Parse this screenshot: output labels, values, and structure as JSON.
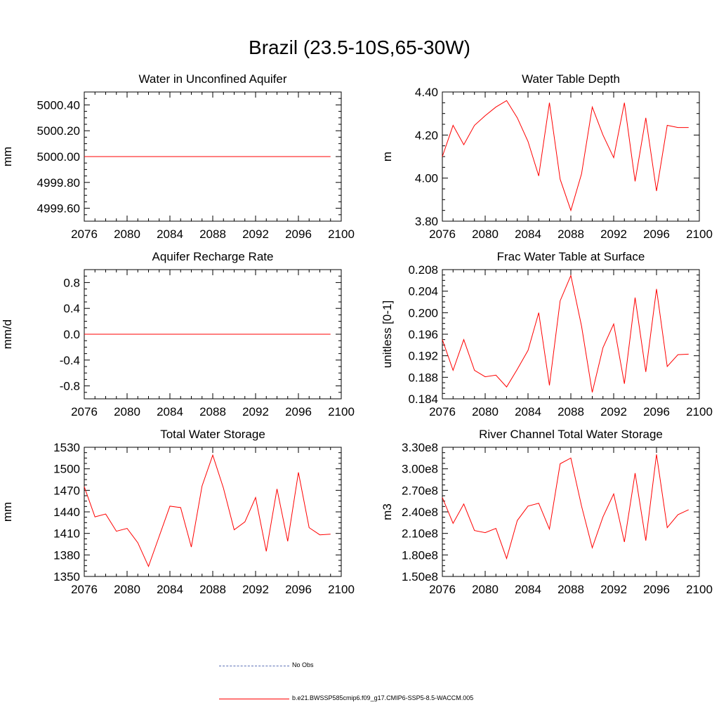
{
  "figure_title": "Brazil (23.5-10S,65-30W)",
  "colors": {
    "model": "#ff0000",
    "obs": "#5a6fb5",
    "axis": "#000000"
  },
  "legend": {
    "obs_label": "No Obs",
    "model_label": "b.e21.BWSSP585cmip6.f09_g17.CMIP6-SSP5-8.5-WACCM.005"
  },
  "chart_data": [
    {
      "type": "line",
      "title": "Water in Unconfined Aquifer",
      "ylabel": "mm",
      "xlabel": "",
      "xlim": [
        2076,
        2100
      ],
      "ylim": [
        4999.5,
        5000.5
      ],
      "xticks": [
        2076,
        2080,
        2084,
        2088,
        2092,
        2096,
        2100
      ],
      "xtick_labels": [
        "2076",
        "2080",
        "2084",
        "2088",
        "2092",
        "2096",
        "2100"
      ],
      "yticks": [
        4999.6,
        4999.8,
        5000.0,
        5000.2,
        5000.4
      ],
      "ytick_labels": [
        "4999.60",
        "4999.80",
        "5000.00",
        "5000.20",
        "5000.40"
      ],
      "x": [
        2076,
        2077,
        2078,
        2079,
        2080,
        2081,
        2082,
        2083,
        2084,
        2085,
        2086,
        2087,
        2088,
        2089,
        2090,
        2091,
        2092,
        2093,
        2094,
        2095,
        2096,
        2097,
        2098,
        2099
      ],
      "series": [
        {
          "values": [
            5000,
            5000,
            5000,
            5000,
            5000,
            5000,
            5000,
            5000,
            5000,
            5000,
            5000,
            5000,
            5000,
            5000,
            5000,
            5000,
            5000,
            5000,
            5000,
            5000,
            5000,
            5000,
            5000,
            5000
          ]
        }
      ]
    },
    {
      "type": "line",
      "title": "Water Table Depth",
      "ylabel": "m",
      "xlabel": "",
      "xlim": [
        2076,
        2100
      ],
      "ylim": [
        3.8,
        4.4
      ],
      "xticks": [
        2076,
        2080,
        2084,
        2088,
        2092,
        2096,
        2100
      ],
      "xtick_labels": [
        "2076",
        "2080",
        "2084",
        "2088",
        "2092",
        "2096",
        "2100"
      ],
      "yticks": [
        3.8,
        4.0,
        4.2,
        4.4
      ],
      "ytick_labels": [
        "3.80",
        "4.00",
        "4.20",
        "4.40"
      ],
      "x": [
        2076,
        2077,
        2078,
        2079,
        2080,
        2081,
        2082,
        2083,
        2084,
        2085,
        2086,
        2087,
        2088,
        2089,
        2090,
        2091,
        2092,
        2093,
        2094,
        2095,
        2096,
        2097,
        2098,
        2099
      ],
      "series": [
        {
          "values": [
            4.1,
            4.245,
            4.155,
            4.245,
            4.29,
            4.33,
            4.36,
            4.28,
            4.17,
            4.01,
            4.35,
            3.995,
            3.85,
            4.02,
            4.33,
            4.2,
            4.095,
            4.35,
            3.985,
            4.28,
            3.94,
            4.245,
            4.235,
            4.235
          ]
        }
      ]
    },
    {
      "type": "line",
      "title": "Aquifer Recharge Rate",
      "ylabel": "mm/d",
      "xlabel": "",
      "xlim": [
        2076,
        2100
      ],
      "ylim": [
        -1.0,
        1.0
      ],
      "xticks": [
        2076,
        2080,
        2084,
        2088,
        2092,
        2096,
        2100
      ],
      "xtick_labels": [
        "2076",
        "2080",
        "2084",
        "2088",
        "2092",
        "2096",
        "2100"
      ],
      "yticks": [
        -0.8,
        -0.4,
        0.0,
        0.4,
        0.8
      ],
      "ytick_labels": [
        "-0.8",
        "-0.4",
        "0.0",
        "0.4",
        "0.8"
      ],
      "x": [
        2076,
        2077,
        2078,
        2079,
        2080,
        2081,
        2082,
        2083,
        2084,
        2085,
        2086,
        2087,
        2088,
        2089,
        2090,
        2091,
        2092,
        2093,
        2094,
        2095,
        2096,
        2097,
        2098,
        2099
      ],
      "series": [
        {
          "values": [
            0,
            0,
            0,
            0,
            0,
            0,
            0,
            0,
            0,
            0,
            0,
            0,
            0,
            0,
            0,
            0,
            0,
            0,
            0,
            0,
            0,
            0,
            0,
            0
          ]
        }
      ]
    },
    {
      "type": "line",
      "title": "Frac Water Table at Surface",
      "ylabel": "unitless [0-1]",
      "xlabel": "",
      "xlim": [
        2076,
        2100
      ],
      "ylim": [
        0.184,
        0.208
      ],
      "xticks": [
        2076,
        2080,
        2084,
        2088,
        2092,
        2096,
        2100
      ],
      "xtick_labels": [
        "2076",
        "2080",
        "2084",
        "2088",
        "2092",
        "2096",
        "2100"
      ],
      "yticks": [
        0.184,
        0.188,
        0.192,
        0.196,
        0.2,
        0.204,
        0.208
      ],
      "ytick_labels": [
        "0.184",
        "0.188",
        "0.192",
        "0.196",
        "0.200",
        "0.204",
        "0.208"
      ],
      "x": [
        2076,
        2077,
        2078,
        2079,
        2080,
        2081,
        2082,
        2083,
        2084,
        2085,
        2086,
        2087,
        2088,
        2089,
        2090,
        2091,
        2092,
        2093,
        2094,
        2095,
        2096,
        2097,
        2098,
        2099
      ],
      "series": [
        {
          "values": [
            0.195,
            0.1893,
            0.195,
            0.1893,
            0.1881,
            0.1884,
            0.1862,
            0.1895,
            0.193,
            0.2,
            0.1865,
            0.2022,
            0.2069,
            0.1975,
            0.1852,
            0.1935,
            0.1979,
            0.1868,
            0.2028,
            0.189,
            0.2044,
            0.19,
            0.1922,
            0.1923
          ]
        }
      ]
    },
    {
      "type": "line",
      "title": "Total Water Storage",
      "ylabel": "mm",
      "xlabel": "",
      "xlim": [
        2076,
        2100
      ],
      "ylim": [
        1350,
        1530
      ],
      "xticks": [
        2076,
        2080,
        2084,
        2088,
        2092,
        2096,
        2100
      ],
      "xtick_labels": [
        "2076",
        "2080",
        "2084",
        "2088",
        "2092",
        "2096",
        "2100"
      ],
      "yticks": [
        1350,
        1380,
        1410,
        1440,
        1470,
        1500,
        1530
      ],
      "ytick_labels": [
        "1350",
        "1380",
        "1410",
        "1440",
        "1470",
        "1500",
        "1530"
      ],
      "x": [
        2076,
        2077,
        2078,
        2079,
        2080,
        2081,
        2082,
        2083,
        2084,
        2085,
        2086,
        2087,
        2088,
        2089,
        2090,
        2091,
        2092,
        2093,
        2094,
        2095,
        2096,
        2097,
        2098,
        2099
      ],
      "series": [
        {
          "values": [
            1475,
            1433,
            1437,
            1413,
            1417,
            1397,
            1364,
            1406,
            1448,
            1446,
            1391,
            1476,
            1519,
            1473,
            1415,
            1426,
            1460,
            1385,
            1472,
            1399,
            1495,
            1418,
            1408,
            1409
          ]
        }
      ]
    },
    {
      "type": "line",
      "title": "River Channel Total Water Storage",
      "ylabel": "m3",
      "xlabel": "",
      "xlim": [
        2076,
        2100
      ],
      "ylim": [
        150000000,
        330000000
      ],
      "xticks": [
        2076,
        2080,
        2084,
        2088,
        2092,
        2096,
        2100
      ],
      "xtick_labels": [
        "2076",
        "2080",
        "2084",
        "2088",
        "2092",
        "2096",
        "2100"
      ],
      "yticks": [
        150000000,
        180000000,
        210000000,
        240000000,
        270000000,
        300000000,
        330000000
      ],
      "ytick_labels": [
        "1.50e8",
        "1.80e8",
        "2.10e8",
        "2.40e8",
        "2.70e8",
        "3.00e8",
        "3.30e8"
      ],
      "x": [
        2076,
        2077,
        2078,
        2079,
        2080,
        2081,
        2082,
        2083,
        2084,
        2085,
        2086,
        2087,
        2088,
        2089,
        2090,
        2091,
        2092,
        2093,
        2094,
        2095,
        2096,
        2097,
        2098,
        2099
      ],
      "series": [
        {
          "values": [
            260000000,
            224000000,
            251000000,
            214000000,
            211000000,
            217000000,
            175000000,
            228000000,
            248000000,
            252000000,
            216000000,
            307000000,
            315000000,
            248000000,
            190000000,
            233000000,
            265000000,
            198000000,
            294000000,
            200000000,
            320000000,
            218000000,
            236000000,
            243000000
          ]
        }
      ]
    }
  ]
}
